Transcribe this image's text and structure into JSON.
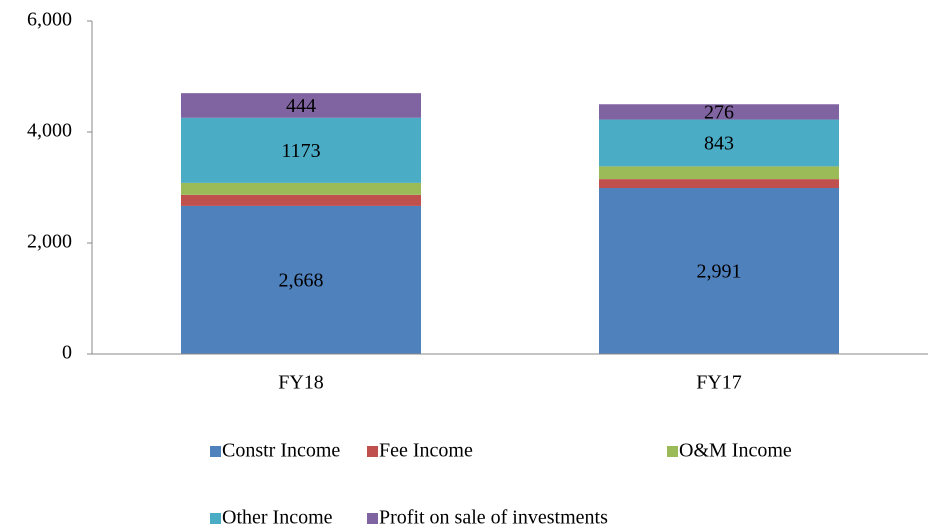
{
  "chart_data": {
    "type": "stacked_bar",
    "categories": [
      "FY18",
      "FY17"
    ],
    "series": [
      {
        "name": "Constr Income",
        "color": "#4f81bd",
        "values": [
          2668,
          2991
        ],
        "value_labels": [
          "2,668",
          "2,991"
        ]
      },
      {
        "name": "Fee Income",
        "color": "#c0504d",
        "values": [
          200,
          160
        ]
      },
      {
        "name": "O&M Income",
        "color": "#9bbb59",
        "values": [
          215,
          230
        ]
      },
      {
        "name": "Other Income",
        "color": "#4bacc6",
        "values": [
          1173,
          843
        ],
        "value_labels": [
          "1173",
          "843"
        ]
      },
      {
        "name": "Profit on sale of investments",
        "color": "#8064a2",
        "values": [
          444,
          276
        ],
        "value_labels": [
          "444",
          "276"
        ]
      }
    ],
    "ylim": [
      0,
      6000
    ],
    "yticks": [
      0,
      {
        "value": 2000,
        "label": "2,000"
      },
      {
        "value": 4000,
        "label": "4,000"
      },
      {
        "value": 6000,
        "label": "6,000"
      }
    ]
  }
}
